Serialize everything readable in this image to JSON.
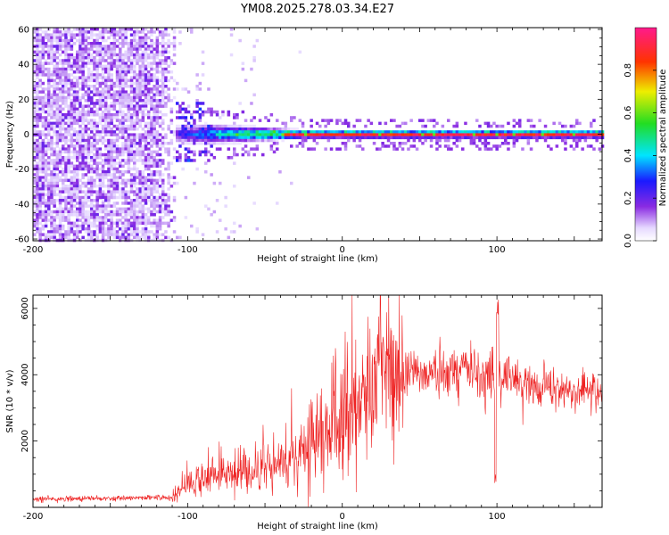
{
  "title": "YM08.2025.278.03.34.E27",
  "colors": {
    "snr_line": "#ee2222",
    "frame": "#000000"
  },
  "chart_data": [
    {
      "type": "heatmap",
      "title": "YM08.2025.278.03.34.E27",
      "xlabel": "Height of straight line (km)",
      "ylabel": "Frequency (Hz)",
      "xlim": [
        -200,
        168
      ],
      "ylim": [
        -61,
        61
      ],
      "xticks": [
        -200,
        -100,
        0,
        100
      ],
      "yticks": [
        60,
        40,
        20,
        0,
        -20,
        -40,
        -60
      ],
      "colorbar": {
        "label": "Normalized spectral amplitude",
        "range": [
          0,
          1
        ],
        "ticks": [
          0.0,
          0.2,
          0.4,
          0.6,
          0.8
        ],
        "tick_labels": [
          "0.0",
          "0.2",
          "0.4",
          "0.6",
          "0.8"
        ]
      },
      "features": {
        "noise_region_x": [
          -200,
          -108
        ],
        "noise_amplitude": 0.12,
        "signal_onset_x": -108,
        "signal_center_freq_hz": 0,
        "signal_peak_amplitude": 0.95
      }
    },
    {
      "type": "line",
      "xlabel": "Height of straight line (km)",
      "ylabel": "SNR (10 * v/v)",
      "xlim": [
        -200,
        168
      ],
      "ylim": [
        0,
        6400
      ],
      "xticks": [
        -200,
        -100,
        0,
        100
      ],
      "yticks": [
        2000,
        4000,
        6000
      ],
      "series": [
        {
          "name": "SNR",
          "x": [
            -200,
            -160,
            -130,
            -110,
            -100,
            -90,
            -80,
            -70,
            -60,
            -50,
            -40,
            -30,
            -20,
            -10,
            0,
            10,
            20,
            30,
            40,
            50,
            60,
            70,
            80,
            90,
            100,
            110,
            120,
            130,
            140,
            150,
            160,
            168
          ],
          "values": [
            250,
            260,
            280,
            300,
            650,
            850,
            1000,
            1000,
            1050,
            1100,
            1250,
            1500,
            1900,
            2300,
            2500,
            3000,
            3700,
            4100,
            4200,
            4100,
            4000,
            4100,
            4200,
            4000,
            4000,
            3900,
            3800,
            3650,
            3550,
            3500,
            3450,
            3400
          ]
        }
      ],
      "annotations": {
        "spike_peak": {
          "x": 100,
          "value": 6300
        },
        "dip_min": {
          "x": 99,
          "value": 700
        }
      }
    }
  ]
}
